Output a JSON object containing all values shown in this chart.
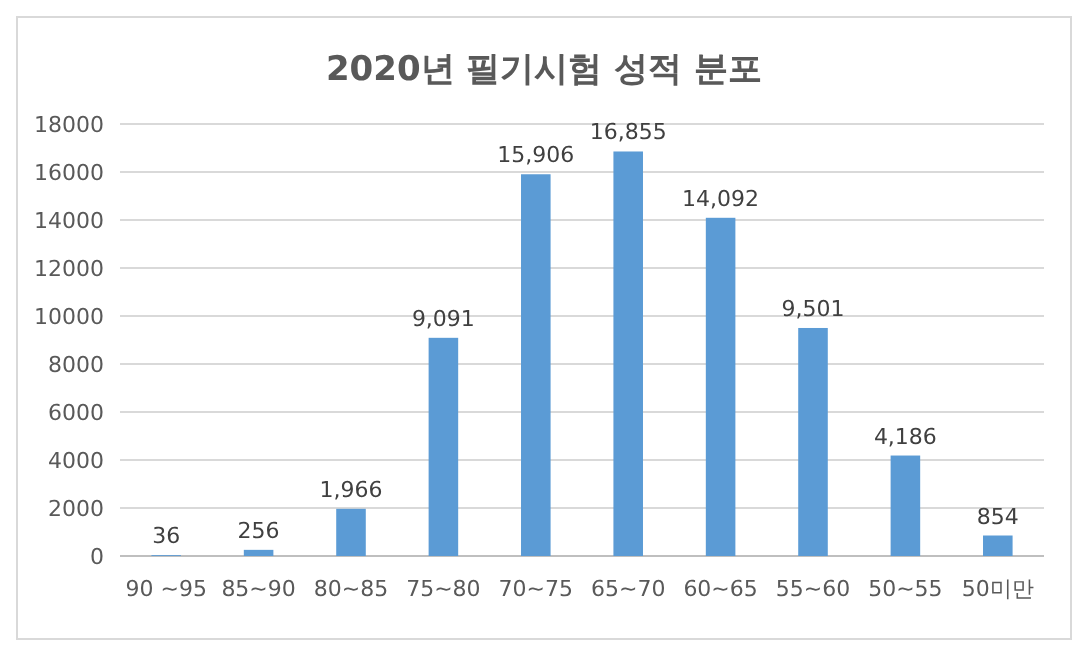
{
  "chart_data": {
    "type": "bar",
    "title": "2020년 필기시험 성적 분포",
    "categories": [
      "90 ~95",
      "85~90",
      "80~85",
      "75~80",
      "70~75",
      "65~70",
      "60~65",
      "55~60",
      "50~55",
      "50미만"
    ],
    "values": [
      36,
      256,
      1966,
      9091,
      15906,
      16855,
      14092,
      9501,
      4186,
      854
    ],
    "value_labels": [
      "36",
      "256",
      "1,966",
      "9,091",
      "15,906",
      "16,855",
      "14,092",
      "9,501",
      "4,186",
      "854"
    ],
    "color": "#5b9bd5",
    "ylim": [
      0,
      18000
    ],
    "yticks": [
      0,
      2000,
      4000,
      6000,
      8000,
      10000,
      12000,
      14000,
      16000,
      18000
    ],
    "grid": "y"
  }
}
